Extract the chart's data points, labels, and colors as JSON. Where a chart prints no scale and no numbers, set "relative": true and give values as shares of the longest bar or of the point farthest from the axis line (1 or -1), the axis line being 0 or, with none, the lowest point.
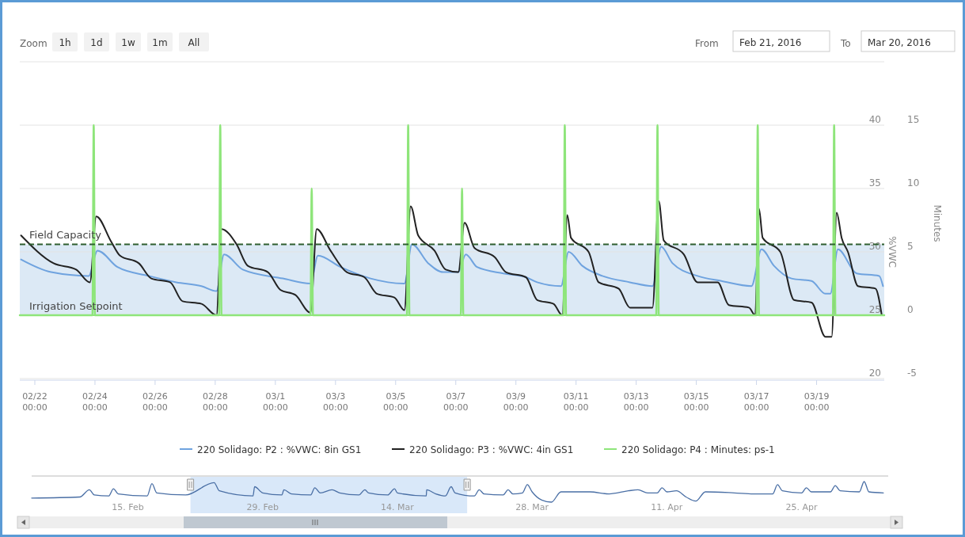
{
  "chart_data": [
    {
      "type": "line",
      "xlim": [
        "2016-02-21T12:00",
        "2016-03-21T06:00"
      ],
      "xticks": [
        {
          "value": "2016-02-22",
          "label": "02/22\n00:00"
        },
        {
          "value": "2016-02-24",
          "label": "02/24\n00:00"
        },
        {
          "value": "2016-02-26",
          "label": "02/26\n00:00"
        },
        {
          "value": "2016-02-28",
          "label": "02/28\n00:00"
        },
        {
          "value": "2016-03-01",
          "label": "03/1\n00:00"
        },
        {
          "value": "2016-03-03",
          "label": "03/3\n00:00"
        },
        {
          "value": "2016-03-05",
          "label": "03/5\n00:00"
        },
        {
          "value": "2016-03-07",
          "label": "03/7\n00:00"
        },
        {
          "value": "2016-03-09",
          "label": "03/9\n00:00"
        },
        {
          "value": "2016-03-11",
          "label": "03/11\n00:00"
        },
        {
          "value": "2016-03-13",
          "label": "03/13\n00:00"
        },
        {
          "value": "2016-03-15",
          "label": "03/15\n00:00"
        },
        {
          "value": "2016-03-17",
          "label": "03/17\n00:00"
        },
        {
          "value": "2016-03-19",
          "label": "03/19\n00:00"
        }
      ],
      "ylim": [
        20,
        45
      ],
      "yticks": [
        20,
        25,
        30,
        35,
        40
      ],
      "y2lim": [
        -5,
        20
      ],
      "y2ticks": [
        -5,
        0,
        5,
        10,
        15
      ],
      "ylabel": "%VWC",
      "y2label": "Minutes",
      "grid": "y",
      "legend": "bottom",
      "annotations": [
        "Zoom",
        "1h",
        "1d",
        "1w",
        "1m",
        "All",
        "From",
        "Feb 21, 2016",
        "To",
        "Mar 20, 2016"
      ],
      "bands": [
        {
          "axis": "y",
          "from": 25,
          "to": 30.6,
          "color": "#dce9f5"
        }
      ],
      "ref_lines": [
        {
          "axis": "y",
          "value": 30.6,
          "label": "Field Capacity",
          "color": "#2f5f2f",
          "line_style": "dashed"
        },
        {
          "axis": "y",
          "value": 25,
          "label": "Irrigation Setpoint",
          "color": "#8ee57a",
          "line_style": "solid"
        }
      ],
      "series": [
        {
          "name": "220 Solidago: P2 : %VWC: 8in GS1",
          "color": "#6fa3df",
          "x": [
            "2016-02-21T13:00",
            "2016-02-22T13:00",
            "2016-02-23T19:00",
            "2016-02-24T02:00",
            "2016-02-24T18:00",
            "2016-02-25T19:00",
            "2016-02-26T17:00",
            "2016-02-27T13:00",
            "2016-02-28T01:00",
            "2016-02-28T07:00",
            "2016-02-28T22:00",
            "2016-03-01T06:00",
            "2016-03-02T04:00",
            "2016-03-02T10:00",
            "2016-03-03T04:00",
            "2016-03-04T04:00",
            "2016-03-05T07:00",
            "2016-03-05T13:00",
            "2016-03-06T02:00",
            "2016-03-06T14:00",
            "2016-03-07T02:00",
            "2016-03-07T08:00",
            "2016-03-07T17:00",
            "2016-03-08T14:00",
            "2016-03-09T08:00",
            "2016-03-09T17:00",
            "2016-03-10T12:00",
            "2016-03-10T18:00",
            "2016-03-11T05:00",
            "2016-03-11T21:00",
            "2016-03-12T19:00",
            "2016-03-13T13:00",
            "2016-03-13T20:00",
            "2016-03-14T05:00",
            "2016-03-15T01:00",
            "2016-03-15T20:00",
            "2016-03-16T20:00",
            "2016-03-17T04:00",
            "2016-03-17T14:00",
            "2016-03-18T04:00",
            "2016-03-18T20:00",
            "2016-03-19T07:00",
            "2016-03-19T11:00",
            "2016-03-19T17:00",
            "2016-03-20T08:00",
            "2016-03-21T02:00",
            "2016-03-21T05:00"
          ],
          "values": [
            29.4,
            28.4,
            28.1,
            30.1,
            28.8,
            28.1,
            27.6,
            27.3,
            26.9,
            29.8,
            28.6,
            27.9,
            27.5,
            29.7,
            28.8,
            27.9,
            27.5,
            30.6,
            29.1,
            28.4,
            28.4,
            29.8,
            28.8,
            28.3,
            28,
            27.6,
            27.3,
            30,
            28.9,
            28.1,
            27.6,
            27.3,
            30.4,
            29.1,
            28.1,
            27.7,
            27.3,
            30.2,
            28.9,
            27.9,
            27.7,
            26.7,
            26.7,
            30.2,
            28.3,
            28.1,
            27.3
          ]
        },
        {
          "name": "220 Solidago: P3 : %VWC: 4in GS1",
          "color": "#222222",
          "x": [
            "2016-02-21T13:00",
            "2016-02-22T15:00",
            "2016-02-23T09:00",
            "2016-02-23T20:00",
            "2016-02-24T01:00",
            "2016-02-24T13:00",
            "2016-02-24T20:00",
            "2016-02-25T11:00",
            "2016-02-25T21:00",
            "2016-02-26T12:00",
            "2016-02-26T22:00",
            "2016-02-27T13:00",
            "2016-02-28T01:00",
            "2016-02-28T05:00",
            "2016-02-28T17:00",
            "2016-02-29T02:00",
            "2016-02-29T18:00",
            "2016-03-01T04:00",
            "2016-03-01T16:00",
            "2016-03-02T04:00",
            "2016-03-02T09:00",
            "2016-03-02T20:00",
            "2016-03-03T09:00",
            "2016-03-03T23:00",
            "2016-03-04T09:00",
            "2016-03-04T23:00",
            "2016-03-05T07:00",
            "2016-03-05T12:00",
            "2016-03-05T18:00",
            "2016-03-06T07:00",
            "2016-03-06T16:00",
            "2016-03-07T02:00",
            "2016-03-07T07:00",
            "2016-03-07T15:00",
            "2016-03-08T07:00",
            "2016-03-08T16:00",
            "2016-03-09T08:00",
            "2016-03-09T17:00",
            "2016-03-10T06:00",
            "2016-03-10T13:00",
            "2016-03-10T17:00",
            "2016-03-10T20:00",
            "2016-03-11T10:00",
            "2016-03-11T18:00",
            "2016-03-12T10:00",
            "2016-03-12T19:00",
            "2016-03-13T13:00",
            "2016-03-13T18:00",
            "2016-03-13T22:00",
            "2016-03-14T14:00",
            "2016-03-15T01:00",
            "2016-03-15T17:00",
            "2016-03-16T02:00",
            "2016-03-16T18:00",
            "2016-03-16T23:00",
            "2016-03-17T02:00",
            "2016-03-17T05:00",
            "2016-03-17T19:00",
            "2016-03-18T06:00",
            "2016-03-18T20:00",
            "2016-03-19T07:00",
            "2016-03-19T12:00",
            "2016-03-19T16:00",
            "2016-03-19T20:00",
            "2016-03-20T01:00",
            "2016-03-20T09:00",
            "2016-03-20T23:00",
            "2016-03-21T04:00"
          ],
          "values": [
            31.3,
            29.1,
            28.6,
            27.6,
            32.8,
            30.8,
            29.7,
            29.1,
            27.9,
            27.6,
            26.1,
            25.9,
            25,
            31.8,
            30.6,
            28.9,
            28.4,
            27,
            26.6,
            25.2,
            31.8,
            30.1,
            28.4,
            28,
            26.7,
            26.4,
            25.4,
            33.6,
            31.3,
            30.1,
            28.6,
            28.4,
            32.3,
            30.3,
            29.6,
            28.4,
            28,
            26.2,
            25.9,
            25,
            32.9,
            31.1,
            30,
            27.6,
            27.1,
            25.6,
            25.6,
            34,
            30.9,
            29.8,
            27.6,
            27.6,
            25.8,
            25.6,
            25,
            33.4,
            31.1,
            30,
            26.2,
            26,
            23.3,
            23.3,
            33.1,
            31.1,
            30,
            27.3,
            27.1,
            25
          ]
        },
        {
          "name": "220 Solidago: P4 : Minutes: ps-1",
          "color": "#8ee57a",
          "axis": "y2",
          "x": [
            "2016-02-21T12:00",
            "2016-02-23T22:00",
            "2016-02-23T23:00",
            "2016-02-24T00:00",
            "2016-02-28T03:00",
            "2016-02-28T04:00",
            "2016-02-28T05:00",
            "2016-03-02T04:00",
            "2016-03-02T05:00",
            "2016-03-02T06:00",
            "2016-03-05T09:00",
            "2016-03-05T10:00",
            "2016-03-05T11:00",
            "2016-03-07T04:00",
            "2016-03-07T05:00",
            "2016-03-07T06:00",
            "2016-03-10T14:00",
            "2016-03-10T15:00",
            "2016-03-10T16:00",
            "2016-03-13T16:00",
            "2016-03-13T17:00",
            "2016-03-13T18:00",
            "2016-03-17T00:00",
            "2016-03-17T01:00",
            "2016-03-17T02:00",
            "2016-03-19T13:00",
            "2016-03-19T14:00",
            "2016-03-19T15:00",
            "2016-03-21T06:00"
          ],
          "values": [
            0,
            0,
            15,
            0,
            0,
            15,
            0,
            0,
            10,
            0,
            0,
            15,
            0,
            0,
            10,
            0,
            0,
            15,
            0,
            0,
            15,
            0,
            0,
            15,
            0,
            0,
            15,
            0,
            0
          ]
        }
      ]
    },
    {
      "type": "line",
      "relative": true,
      "tick_labels": "x",
      "xlim": [
        "2016-02-05",
        "2016-05-04"
      ],
      "xticks": [
        {
          "value": "2016-02-15",
          "label": "15. Feb"
        },
        {
          "value": "2016-02-29",
          "label": "29. Feb"
        },
        {
          "value": "2016-03-14",
          "label": "14. Mar"
        },
        {
          "value": "2016-03-28",
          "label": "28. Mar"
        },
        {
          "value": "2016-04-11",
          "label": "11. Apr"
        },
        {
          "value": "2016-04-25",
          "label": "25. Apr"
        }
      ],
      "bands": [
        {
          "axis": "x",
          "from": "2016-02-21T12:00",
          "to": "2016-03-21T06:00",
          "color": "#cfe2f7"
        }
      ],
      "series": [
        {
          "color": "#4a6fa5",
          "x": [
            "2016-02-05",
            "2016-02-10",
            "2016-02-11",
            "2016-02-11T12:00",
            "2016-02-13",
            "2016-02-13T12:00",
            "2016-02-14",
            "2016-02-17",
            "2016-02-17T12:00",
            "2016-02-18",
            "2016-02-21",
            "2016-02-23T23:00",
            "2016-02-24T12:00",
            "2016-02-28",
            "2016-02-28T04:00",
            "2016-02-29",
            "2016-03-02",
            "2016-03-02T05:00",
            "2016-03-03",
            "2016-03-05",
            "2016-03-05T10:00",
            "2016-03-06",
            "2016-03-07T05:00",
            "2016-03-08",
            "2016-03-10",
            "2016-03-10T15:00",
            "2016-03-11",
            "2016-03-13",
            "2016-03-13T17:00",
            "2016-03-14",
            "2016-03-17",
            "2016-03-17T01:00",
            "2016-03-18",
            "2016-03-19",
            "2016-03-19T14:00",
            "2016-03-20",
            "2016-03-22",
            "2016-03-22T12:00",
            "2016-03-23",
            "2016-03-25",
            "2016-03-25T12:00",
            "2016-03-26",
            "2016-03-27",
            "2016-03-27T12:00",
            "2016-03-28",
            "2016-03-29",
            "2016-03-30",
            "2016-03-31",
            "2016-04-03",
            "2016-04-05",
            "2016-04-07",
            "2016-04-08",
            "2016-04-09",
            "2016-04-10",
            "2016-04-10T12:00",
            "2016-04-11",
            "2016-04-12",
            "2016-04-13",
            "2016-04-14",
            "2016-04-15",
            "2016-04-18",
            "2016-04-20",
            "2016-04-22",
            "2016-04-22T12:00",
            "2016-04-23",
            "2016-04-25",
            "2016-04-25T12:00",
            "2016-04-26",
            "2016-04-28",
            "2016-04-28T12:00",
            "2016-04-29",
            "2016-05-01",
            "2016-05-01T12:00",
            "2016-05-02",
            "2016-05-03T12:00"
          ],
          "values": [
            0.2,
            0.25,
            0.6,
            0.35,
            0.3,
            0.65,
            0.4,
            0.3,
            0.9,
            0.45,
            0.35,
            0.95,
            0.55,
            0.3,
            0.75,
            0.45,
            0.35,
            0.6,
            0.4,
            0.35,
            0.7,
            0.45,
            0.6,
            0.45,
            0.35,
            0.6,
            0.45,
            0.35,
            0.65,
            0.45,
            0.3,
            0.6,
            0.4,
            0.3,
            0.75,
            0.45,
            0.3,
            0.6,
            0.4,
            0.35,
            0.6,
            0.4,
            0.45,
            0.85,
            0.5,
            0.1,
            0,
            0.5,
            0.5,
            0.4,
            0.55,
            0.6,
            0.45,
            0.45,
            0.7,
            0.5,
            0.55,
            0.25,
            0.05,
            0.5,
            0.45,
            0.4,
            0.4,
            0.85,
            0.55,
            0.45,
            0.7,
            0.5,
            0.5,
            0.8,
            0.55,
            0.5,
            1,
            0.5,
            0.45
          ]
        }
      ]
    }
  ]
}
